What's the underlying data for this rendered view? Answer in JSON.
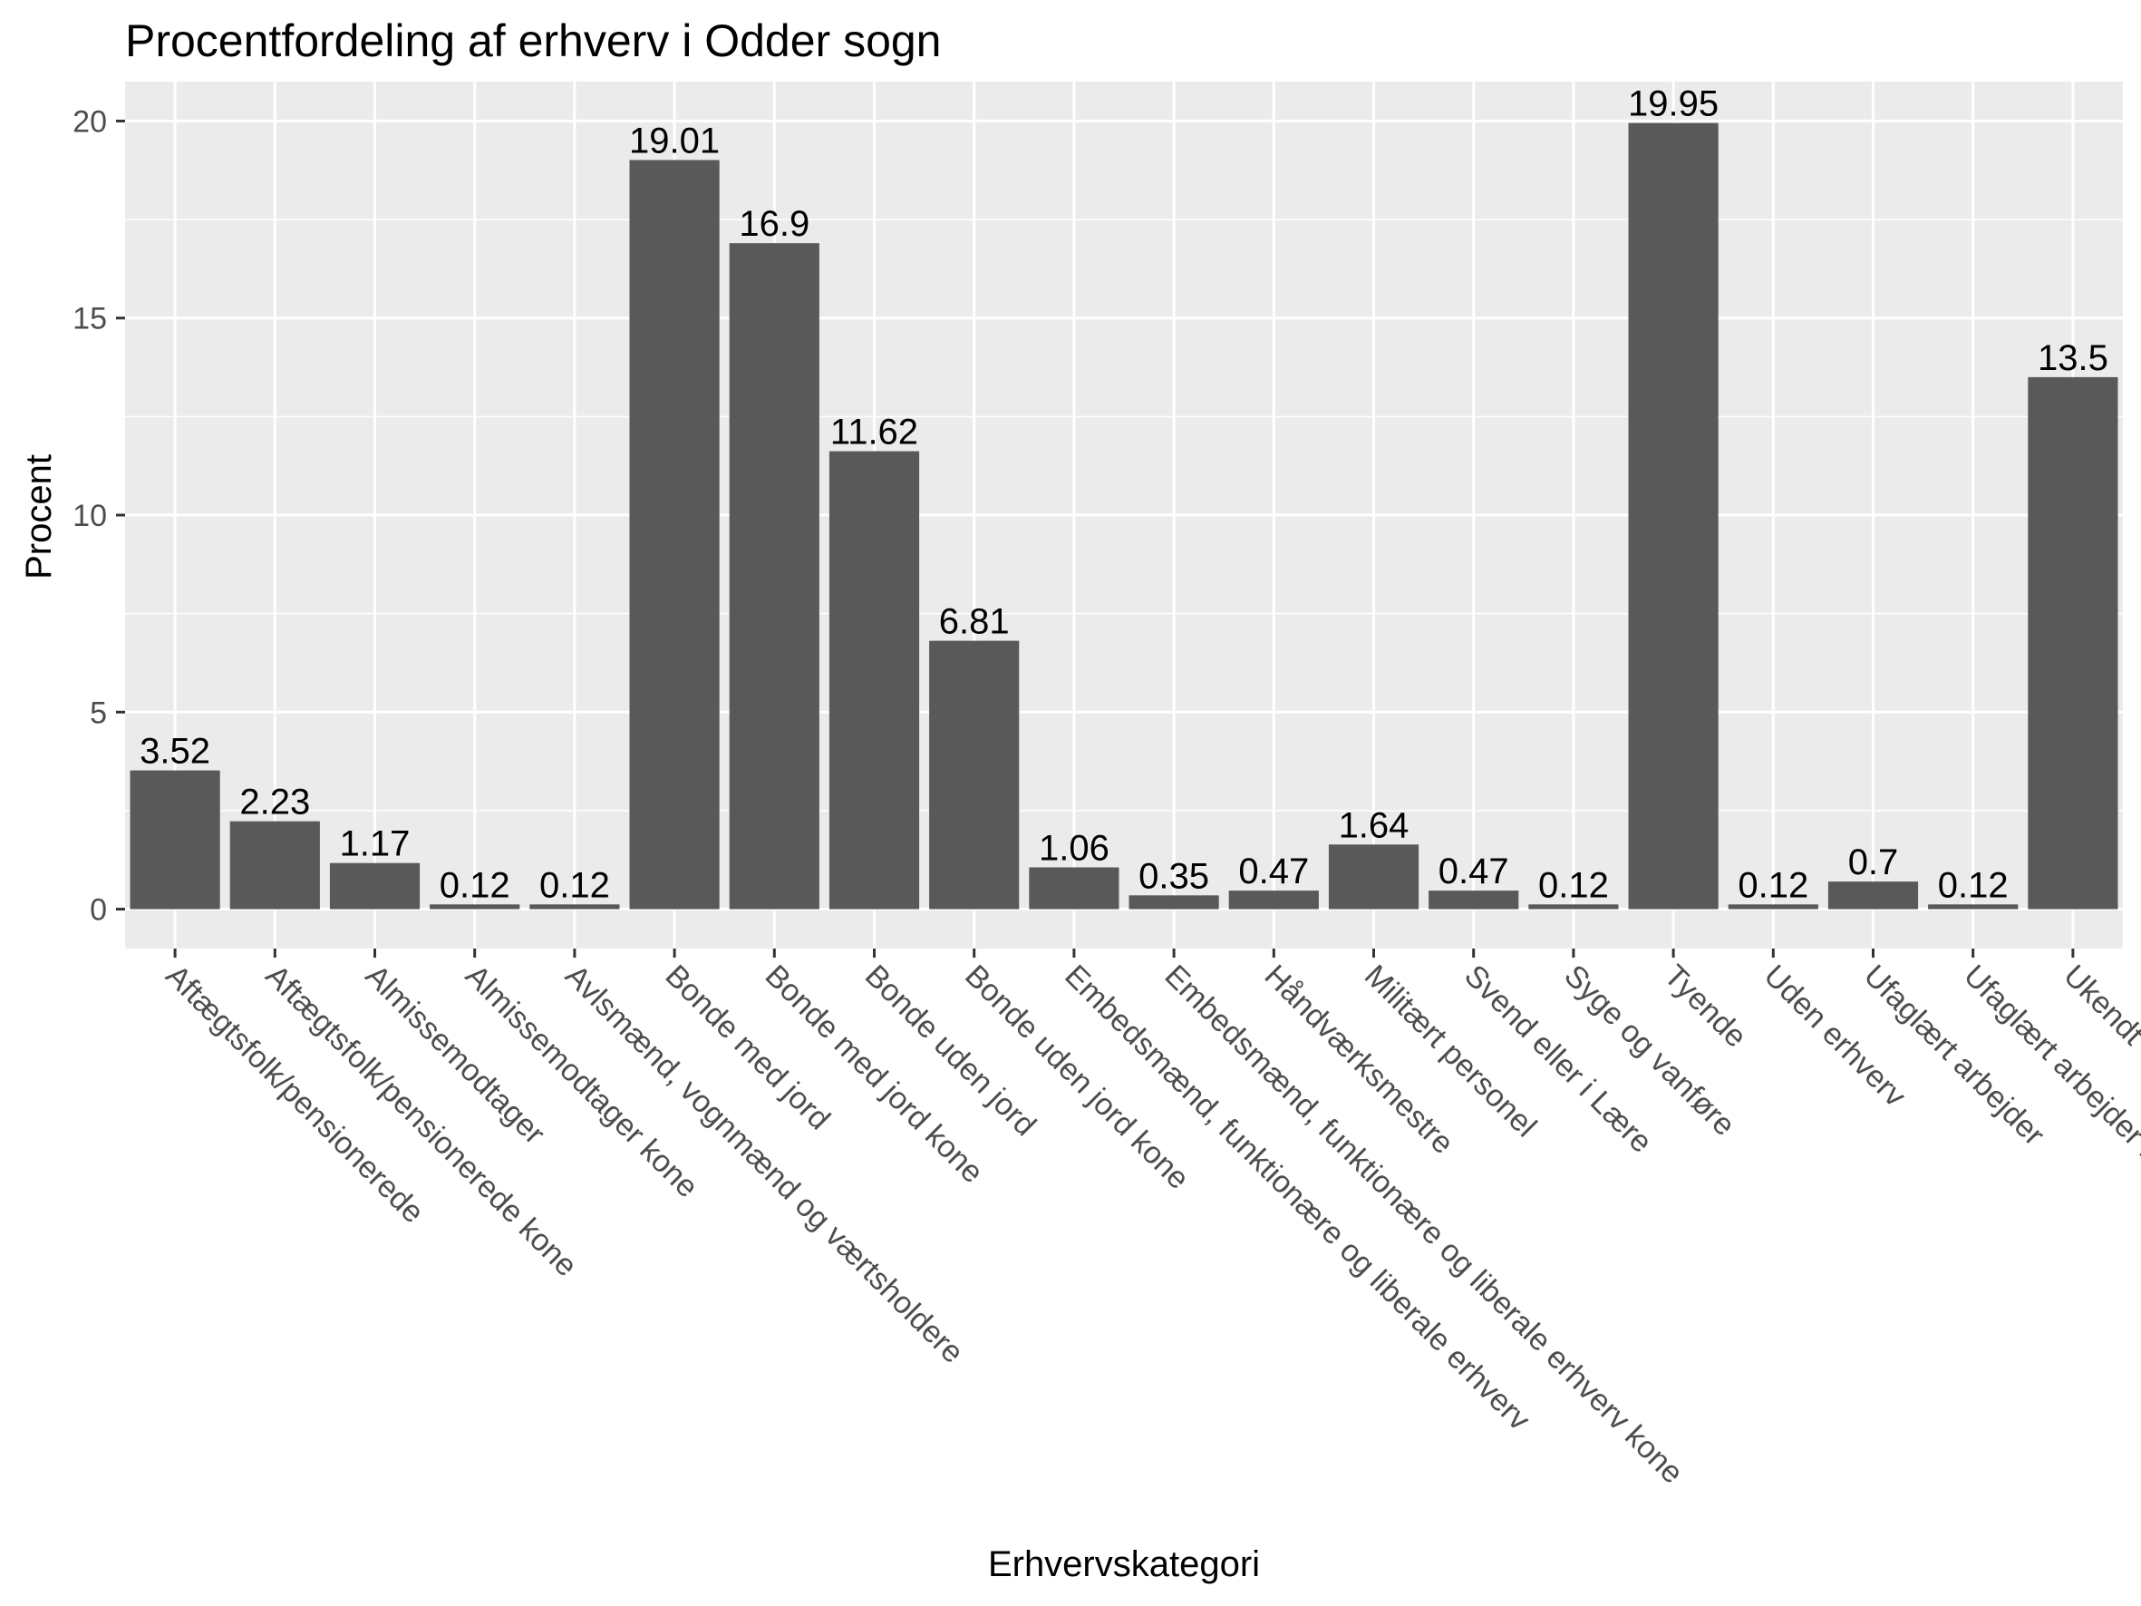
{
  "chart_data": {
    "type": "bar",
    "title": "Procentfordeling af erhverv i Odder sogn",
    "xlabel": "Erhvervskategori",
    "ylabel": "Procent",
    "ylim": [
      -1,
      21
    ],
    "yticks": [
      0,
      5,
      10,
      15,
      20
    ],
    "grid": true,
    "categories": [
      "Aftægtsfolk/pensionerede",
      "Aftægtsfolk/pensionerede kone",
      "Almissemodtager",
      "Almissemodtager kone",
      "Avlsmænd, vognmænd og værtsholdere",
      "Bonde med jord",
      "Bonde med jord kone",
      "Bonde uden jord",
      "Bonde uden jord kone",
      "Embedsmænd, funktionære og liberale erhverv",
      "Embedsmænd, funktionære og liberale erhverv kone",
      "Håndværksmestre",
      "Militært personel",
      "Svend eller i Lære",
      "Syge og vanføre",
      "Tyende",
      "Uden erhverv",
      "Ufaglært arbejder",
      "Ufaglært arbejder kone",
      "Ukendt"
    ],
    "values": [
      3.52,
      2.23,
      1.17,
      0.12,
      0.12,
      19.01,
      16.9,
      11.62,
      6.81,
      1.06,
      0.35,
      0.47,
      1.64,
      0.47,
      0.12,
      19.95,
      0.12,
      0.7,
      0.12,
      13.5
    ],
    "value_labels": [
      "3.52",
      "2.23",
      "1.17",
      "0.12",
      "0.12",
      "19.01",
      "16.9",
      "11.62",
      "6.81",
      "1.06",
      "0.35",
      "0.47",
      "1.64",
      "0.47",
      "0.12",
      "19.95",
      "0.12",
      "0.7",
      "0.12",
      "13.5"
    ],
    "colors": {
      "bar": "#595959",
      "panel": "#ebebeb",
      "grid": "#ffffff",
      "tick": "#333333"
    }
  }
}
